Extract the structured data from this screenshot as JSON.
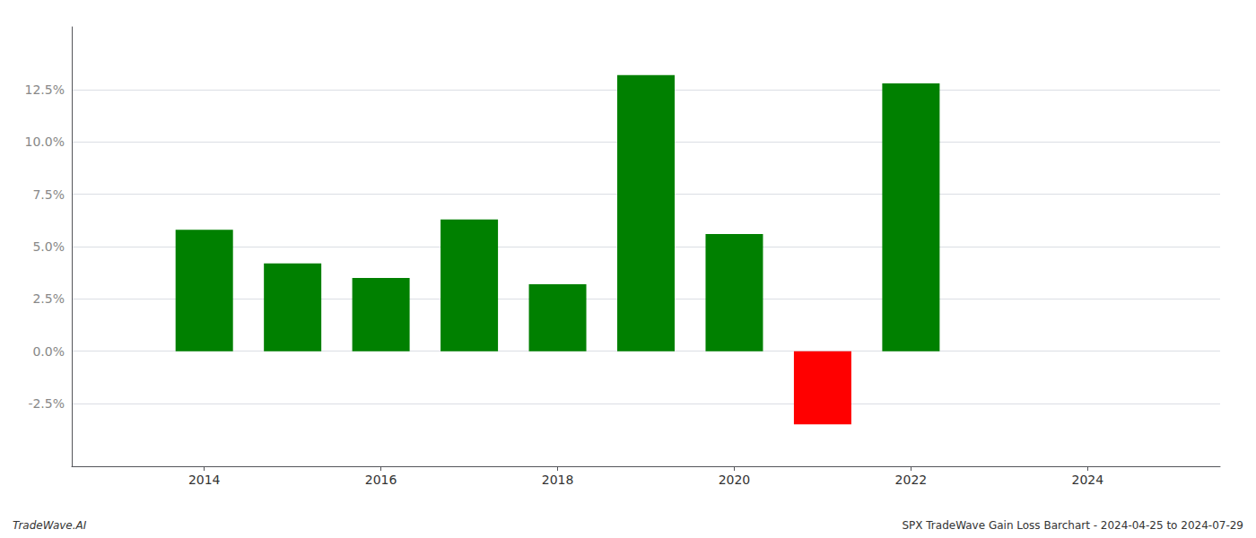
{
  "chart_data": {
    "type": "bar",
    "x": [
      2014,
      2015,
      2016,
      2017,
      2018,
      2019,
      2020,
      2021,
      2022,
      2023
    ],
    "values": [
      0.058,
      0.042,
      0.035,
      0.063,
      0.032,
      0.132,
      0.056,
      -0.035,
      0.128,
      0.0
    ],
    "colors": [
      "#008000",
      "#008000",
      "#008000",
      "#008000",
      "#008000",
      "#008000",
      "#008000",
      "#ff0000",
      "#008000",
      "#008000"
    ],
    "xlim": [
      2012.5,
      2025.5
    ],
    "xticks": [
      2014,
      2016,
      2018,
      2020,
      2022,
      2024
    ],
    "ylim": [
      -0.055,
      0.155
    ],
    "yticks": [
      {
        "value": -0.025,
        "label": "-2.5%"
      },
      {
        "value": 0.0,
        "label": "0.0%"
      },
      {
        "value": 0.025,
        "label": "2.5%"
      },
      {
        "value": 0.05,
        "label": "5.0%"
      },
      {
        "value": 0.075,
        "label": "7.5%"
      },
      {
        "value": 0.1,
        "label": "10.0%"
      },
      {
        "value": 0.125,
        "label": "12.5%"
      }
    ],
    "grid": true,
    "annotations": [
      "TradeWave.AI",
      "SPX TradeWave Gain Loss Barchart - 2024-04-25 to 2024-07-29"
    ]
  }
}
